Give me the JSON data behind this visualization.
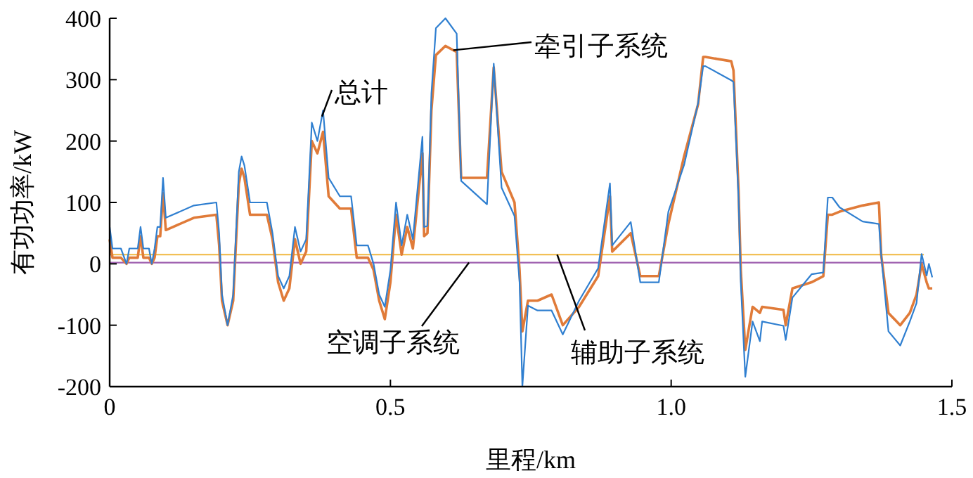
{
  "chart_data": {
    "type": "line",
    "xlabel": "里程/km",
    "ylabel": "有功功率/kW",
    "xlim": [
      0,
      1.5
    ],
    "xticks": [
      0,
      0.5,
      {
        "value": 1,
        "label": "1.0"
      },
      1.5
    ],
    "ylim": [
      -200,
      400
    ],
    "yticks": [
      -200,
      -100,
      0,
      100,
      200,
      300,
      400
    ],
    "grid": false,
    "legend": false,
    "series": [
      {
        "name": "总计",
        "color": "#2f7fd0",
        "x": [
          0,
          0.005,
          0.02,
          0.03,
          0.035,
          0.05,
          0.055,
          0.06,
          0.07,
          0.075,
          0.08,
          0.085,
          0.09,
          0.095,
          0.1,
          0.15,
          0.19,
          0.195,
          0.2,
          0.21,
          0.22,
          0.23,
          0.235,
          0.24,
          0.25,
          0.28,
          0.29,
          0.3,
          0.31,
          0.32,
          0.33,
          0.34,
          0.35,
          0.36,
          0.37,
          0.38,
          0.39,
          0.41,
          0.43,
          0.44,
          0.46,
          0.47,
          0.48,
          0.49,
          0.5,
          0.51,
          0.52,
          0.53,
          0.54,
          0.557,
          0.56,
          0.566,
          0.573,
          0.581,
          0.598,
          0.618,
          0.626,
          0.672,
          0.684,
          0.698,
          0.721,
          0.73,
          0.735,
          0.745,
          0.762,
          0.787,
          0.807,
          0.836,
          0.87,
          0.891,
          0.895,
          0.928,
          0.945,
          0.978,
          0.995,
          1.023,
          1.048,
          1.057,
          1.061,
          1.107,
          1.111,
          1.12,
          1.124,
          1.132,
          1.145,
          1.158,
          1.162,
          1.2,
          1.204,
          1.216,
          1.25,
          1.271,
          1.279,
          1.287,
          1.3,
          1.341,
          1.37,
          1.374,
          1.387,
          1.408,
          1.425,
          1.437,
          1.446,
          1.455,
          1.459,
          1.465
        ],
        "values": [
          60,
          25,
          25,
          0,
          25,
          25,
          60,
          25,
          25,
          0,
          25,
          60,
          60,
          140,
          75,
          95,
          100,
          50,
          -50,
          -100,
          -50,
          150,
          175,
          160,
          100,
          100,
          50,
          -20,
          -40,
          -20,
          60,
          20,
          40,
          230,
          200,
          250,
          140,
          110,
          110,
          30,
          30,
          0,
          -50,
          -70,
          -10,
          100,
          30,
          80,
          40,
          207,
          60,
          62,
          277,
          384,
          400,
          375,
          135,
          97,
          326,
          124,
          78,
          -30,
          -200,
          -68,
          -76,
          -76,
          -115,
          -60,
          -7,
          131,
          30,
          68,
          -30,
          -30,
          85,
          161,
          262,
          322,
          322,
          299,
          296,
          108,
          -30,
          -184,
          -94,
          -126,
          -94,
          -101,
          -124,
          -55,
          -17,
          -14,
          108,
          108,
          92,
          69,
          65,
          15,
          -110,
          -133,
          -94,
          -64,
          16,
          -19,
          0,
          -22
        ]
      },
      {
        "name": "牵引子系统",
        "color": "#e07b39",
        "x": [
          0,
          0.005,
          0.02,
          0.03,
          0.035,
          0.05,
          0.055,
          0.06,
          0.07,
          0.075,
          0.08,
          0.085,
          0.09,
          0.095,
          0.1,
          0.15,
          0.19,
          0.195,
          0.2,
          0.21,
          0.22,
          0.23,
          0.235,
          0.24,
          0.25,
          0.28,
          0.29,
          0.3,
          0.31,
          0.32,
          0.33,
          0.34,
          0.35,
          0.36,
          0.37,
          0.38,
          0.39,
          0.41,
          0.43,
          0.44,
          0.46,
          0.47,
          0.48,
          0.49,
          0.5,
          0.51,
          0.52,
          0.53,
          0.54,
          0.557,
          0.56,
          0.566,
          0.573,
          0.581,
          0.598,
          0.618,
          0.626,
          0.672,
          0.684,
          0.698,
          0.721,
          0.73,
          0.735,
          0.745,
          0.762,
          0.787,
          0.807,
          0.836,
          0.87,
          0.891,
          0.895,
          0.928,
          0.945,
          0.978,
          0.995,
          1.023,
          1.048,
          1.057,
          1.061,
          1.107,
          1.111,
          1.12,
          1.124,
          1.132,
          1.145,
          1.158,
          1.162,
          1.2,
          1.204,
          1.216,
          1.25,
          1.271,
          1.279,
          1.287,
          1.3,
          1.341,
          1.37,
          1.374,
          1.387,
          1.408,
          1.425,
          1.437,
          1.446,
          1.455,
          1.459,
          1.465
        ],
        "values": [
          40,
          10,
          10,
          0,
          10,
          10,
          45,
          10,
          10,
          0,
          10,
          45,
          45,
          115,
          55,
          75,
          80,
          30,
          -60,
          -100,
          -60,
          130,
          155,
          140,
          80,
          80,
          40,
          -30,
          -60,
          -40,
          40,
          0,
          20,
          200,
          180,
          215,
          110,
          90,
          90,
          10,
          10,
          -10,
          -60,
          -90,
          -30,
          80,
          15,
          60,
          25,
          180,
          45,
          50,
          250,
          340,
          355,
          345,
          140,
          140,
          320,
          150,
          100,
          -10,
          -110,
          -60,
          -60,
          -50,
          -100,
          -70,
          -20,
          110,
          20,
          50,
          -20,
          -20,
          65,
          175,
          260,
          337,
          337,
          330,
          315,
          120,
          -10,
          -140,
          -70,
          -80,
          -70,
          -75,
          -100,
          -40,
          -30,
          -20,
          80,
          80,
          85,
          95,
          100,
          15,
          -80,
          -100,
          -80,
          -50,
          0,
          -30,
          -40,
          -40
        ]
      },
      {
        "name": "空调子系统",
        "color": "#9e5fae",
        "x": [
          0,
          1.45
        ],
        "values": [
          2,
          2
        ]
      },
      {
        "name": "辅助子系统",
        "color": "#f0b840",
        "x": [
          0,
          1.45
        ],
        "values": [
          15,
          15
        ]
      }
    ]
  }
}
